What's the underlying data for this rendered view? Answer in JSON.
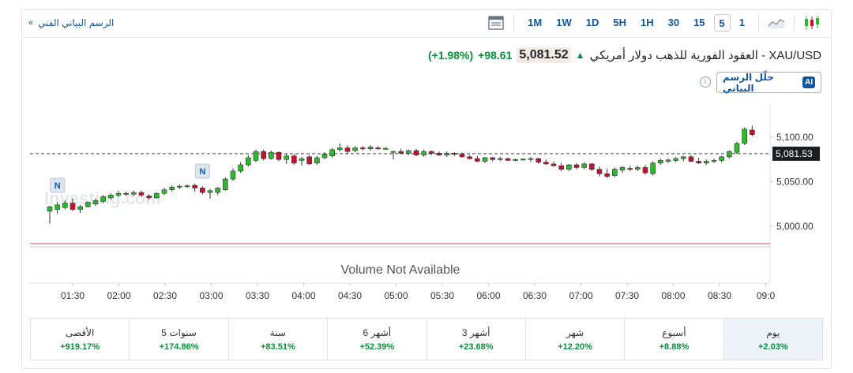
{
  "header": {
    "tech_link": "الرسم البياني الفني",
    "periods": [
      "1M",
      "1W",
      "1D",
      "5H",
      "1H",
      "30",
      "15",
      "5",
      "1"
    ],
    "active_period": "5"
  },
  "instrument": {
    "name": "XAU/USD - العقود الفورية للذهب دولار أمريكي",
    "price": "5,081.52",
    "change": "+98.61",
    "change_pct": "(+1.98%)"
  },
  "ai_button": {
    "badge": "AI",
    "label": "حلّل الرسم البياني"
  },
  "colors": {
    "up": "#2eb82e",
    "down": "#c8102e",
    "accent": "#1256a0",
    "positive_text": "#0a8f3a"
  },
  "chart_data": {
    "type": "candlestick",
    "x_ticks": [
      "01:30",
      "02:00",
      "02:30",
      "03:00",
      "03:30",
      "04:00",
      "04:30",
      "05:00",
      "05:30",
      "06:00",
      "06:30",
      "07:00",
      "07:30",
      "08:00",
      "08:30",
      "09:0"
    ],
    "y_ticks": [
      5000,
      5050,
      5100
    ],
    "y_tick_labels": [
      "5,000.00",
      "5,050.00",
      "5,100.00"
    ],
    "ylim": [
      4965,
      5125
    ],
    "last_price_label": "5,081.53",
    "last_price": 5081.5,
    "volume_text": "Volume Not Available",
    "watermark": "Investing.com",
    "news_marker_label": "N",
    "news_markers_x": [
      "01:20",
      "02:55"
    ],
    "candles": [
      {
        "t": "01:15",
        "o": 5017,
        "h": 5023,
        "l": 5003,
        "c": 5022
      },
      {
        "t": "01:20",
        "o": 5019,
        "h": 5027,
        "l": 5014,
        "c": 5024
      },
      {
        "t": "01:25",
        "o": 5021,
        "h": 5029,
        "l": 5019,
        "c": 5026
      },
      {
        "t": "01:30",
        "o": 5026,
        "h": 5031,
        "l": 5017,
        "c": 5019
      },
      {
        "t": "01:35",
        "o": 5019,
        "h": 5024,
        "l": 5015,
        "c": 5022
      },
      {
        "t": "01:40",
        "o": 5022,
        "h": 5028,
        "l": 5021,
        "c": 5027
      },
      {
        "t": "01:45",
        "o": 5025,
        "h": 5031,
        "l": 5023,
        "c": 5029
      },
      {
        "t": "01:50",
        "o": 5028,
        "h": 5035,
        "l": 5026,
        "c": 5033
      },
      {
        "t": "01:55",
        "o": 5032,
        "h": 5037,
        "l": 5030,
        "c": 5035
      },
      {
        "t": "02:00",
        "o": 5035,
        "h": 5040,
        "l": 5033,
        "c": 5037
      },
      {
        "t": "02:05",
        "o": 5037,
        "h": 5039,
        "l": 5034,
        "c": 5036
      },
      {
        "t": "02:10",
        "o": 5036,
        "h": 5040,
        "l": 5034,
        "c": 5038
      },
      {
        "t": "02:15",
        "o": 5038,
        "h": 5040,
        "l": 5033,
        "c": 5035
      },
      {
        "t": "02:20",
        "o": 5034,
        "h": 5036,
        "l": 5030,
        "c": 5032
      },
      {
        "t": "02:25",
        "o": 5032,
        "h": 5038,
        "l": 5031,
        "c": 5037
      },
      {
        "t": "02:30",
        "o": 5037,
        "h": 5043,
        "l": 5035,
        "c": 5041
      },
      {
        "t": "02:35",
        "o": 5041,
        "h": 5046,
        "l": 5039,
        "c": 5044
      },
      {
        "t": "02:40",
        "o": 5044,
        "h": 5047,
        "l": 5042,
        "c": 5045
      },
      {
        "t": "02:45",
        "o": 5045,
        "h": 5047,
        "l": 5043,
        "c": 5045.5
      },
      {
        "t": "02:50",
        "o": 5046,
        "h": 5048,
        "l": 5039,
        "c": 5043
      },
      {
        "t": "02:55",
        "o": 5043,
        "h": 5045,
        "l": 5036,
        "c": 5038
      },
      {
        "t": "03:00",
        "o": 5038,
        "h": 5042,
        "l": 5031,
        "c": 5040
      },
      {
        "t": "03:05",
        "o": 5038,
        "h": 5044,
        "l": 5035,
        "c": 5043
      },
      {
        "t": "03:10",
        "o": 5041,
        "h": 5055,
        "l": 5040,
        "c": 5053
      },
      {
        "t": "03:15",
        "o": 5053,
        "h": 5065,
        "l": 5051,
        "c": 5062
      },
      {
        "t": "03:20",
        "o": 5062,
        "h": 5072,
        "l": 5060,
        "c": 5069
      },
      {
        "t": "03:25",
        "o": 5069,
        "h": 5080,
        "l": 5067,
        "c": 5077
      },
      {
        "t": "03:30",
        "o": 5074,
        "h": 5086,
        "l": 5072,
        "c": 5084
      },
      {
        "t": "03:35",
        "o": 5084,
        "h": 5086,
        "l": 5074,
        "c": 5076
      },
      {
        "t": "03:40",
        "o": 5076,
        "h": 5085,
        "l": 5075,
        "c": 5083
      },
      {
        "t": "03:45",
        "o": 5083,
        "h": 5084,
        "l": 5073,
        "c": 5075
      },
      {
        "t": "03:50",
        "o": 5075,
        "h": 5081,
        "l": 5070,
        "c": 5079
      },
      {
        "t": "03:55",
        "o": 5079,
        "h": 5081,
        "l": 5069,
        "c": 5071
      },
      {
        "t": "04:00",
        "o": 5074,
        "h": 5078,
        "l": 5068,
        "c": 5076
      },
      {
        "t": "04:05",
        "o": 5078,
        "h": 5080,
        "l": 5069,
        "c": 5070
      },
      {
        "t": "04:10",
        "o": 5071,
        "h": 5079,
        "l": 5069,
        "c": 5077
      },
      {
        "t": "04:15",
        "o": 5077,
        "h": 5083,
        "l": 5075,
        "c": 5081
      },
      {
        "t": "04:20",
        "o": 5079,
        "h": 5088,
        "l": 5077,
        "c": 5086
      },
      {
        "t": "04:25",
        "o": 5086,
        "h": 5093,
        "l": 5084,
        "c": 5088
      },
      {
        "t": "04:30",
        "o": 5088,
        "h": 5091,
        "l": 5081,
        "c": 5084
      },
      {
        "t": "04:35",
        "o": 5085,
        "h": 5090,
        "l": 5083,
        "c": 5088
      },
      {
        "t": "04:40",
        "o": 5088,
        "h": 5090,
        "l": 5085,
        "c": 5087
      },
      {
        "t": "04:45",
        "o": 5087,
        "h": 5091,
        "l": 5085,
        "c": 5089
      },
      {
        "t": "04:50",
        "o": 5088,
        "h": 5090,
        "l": 5086,
        "c": 5087
      },
      {
        "t": "04:55",
        "o": 5087,
        "h": 5089,
        "l": 5086,
        "c": 5087.5
      },
      {
        "t": "05:00",
        "o": 5083,
        "h": 5085,
        "l": 5075,
        "c": 5084
      },
      {
        "t": "05:05",
        "o": 5084,
        "h": 5087,
        "l": 5081,
        "c": 5082
      },
      {
        "t": "05:10",
        "o": 5082,
        "h": 5086,
        "l": 5080,
        "c": 5085
      },
      {
        "t": "05:15",
        "o": 5085,
        "h": 5087,
        "l": 5079,
        "c": 5080
      },
      {
        "t": "05:20",
        "o": 5080,
        "h": 5086,
        "l": 5078,
        "c": 5084
      },
      {
        "t": "05:25",
        "o": 5084,
        "h": 5085,
        "l": 5080,
        "c": 5082
      },
      {
        "t": "05:30",
        "o": 5082,
        "h": 5084,
        "l": 5079,
        "c": 5080
      },
      {
        "t": "05:35",
        "o": 5080,
        "h": 5084,
        "l": 5078,
        "c": 5082
      },
      {
        "t": "05:40",
        "o": 5082,
        "h": 5083,
        "l": 5079,
        "c": 5081
      },
      {
        "t": "05:45",
        "o": 5081,
        "h": 5083,
        "l": 5077,
        "c": 5078
      },
      {
        "t": "05:50",
        "o": 5078,
        "h": 5080,
        "l": 5075,
        "c": 5076
      },
      {
        "t": "05:55",
        "o": 5076,
        "h": 5079,
        "l": 5072,
        "c": 5073
      },
      {
        "t": "06:00",
        "o": 5073,
        "h": 5078,
        "l": 5071,
        "c": 5077
      },
      {
        "t": "06:05",
        "o": 5077,
        "h": 5078,
        "l": 5073,
        "c": 5075
      },
      {
        "t": "06:10",
        "o": 5075,
        "h": 5078,
        "l": 5073,
        "c": 5076
      },
      {
        "t": "06:15",
        "o": 5076,
        "h": 5077,
        "l": 5073,
        "c": 5074
      },
      {
        "t": "06:20",
        "o": 5074,
        "h": 5076,
        "l": 5073,
        "c": 5075
      },
      {
        "t": "06:25",
        "o": 5075,
        "h": 5076,
        "l": 5074,
        "c": 5075.5
      },
      {
        "t": "06:30",
        "o": 5075,
        "h": 5078,
        "l": 5072,
        "c": 5076
      },
      {
        "t": "06:35",
        "o": 5076,
        "h": 5077,
        "l": 5070,
        "c": 5072
      },
      {
        "t": "06:40",
        "o": 5072,
        "h": 5075,
        "l": 5069,
        "c": 5070
      },
      {
        "t": "06:45",
        "o": 5070,
        "h": 5073,
        "l": 5067,
        "c": 5068
      },
      {
        "t": "06:50",
        "o": 5068,
        "h": 5071,
        "l": 5062,
        "c": 5064
      },
      {
        "t": "06:55",
        "o": 5064,
        "h": 5070,
        "l": 5062,
        "c": 5069
      },
      {
        "t": "07:00",
        "o": 5069,
        "h": 5071,
        "l": 5064,
        "c": 5066
      },
      {
        "t": "07:05",
        "o": 5066,
        "h": 5072,
        "l": 5064,
        "c": 5070
      },
      {
        "t": "07:10",
        "o": 5070,
        "h": 5071,
        "l": 5062,
        "c": 5064
      },
      {
        "t": "07:15",
        "o": 5064,
        "h": 5067,
        "l": 5056,
        "c": 5059
      },
      {
        "t": "07:20",
        "o": 5059,
        "h": 5065,
        "l": 5054,
        "c": 5056
      },
      {
        "t": "07:25",
        "o": 5057,
        "h": 5066,
        "l": 5055,
        "c": 5064
      },
      {
        "t": "07:30",
        "o": 5063,
        "h": 5068,
        "l": 5060,
        "c": 5066
      },
      {
        "t": "07:35",
        "o": 5065,
        "h": 5068,
        "l": 5062,
        "c": 5064
      },
      {
        "t": "07:40",
        "o": 5064,
        "h": 5068,
        "l": 5062,
        "c": 5066
      },
      {
        "t": "07:45",
        "o": 5066,
        "h": 5069,
        "l": 5058,
        "c": 5060
      },
      {
        "t": "07:50",
        "o": 5059,
        "h": 5073,
        "l": 5057,
        "c": 5071
      },
      {
        "t": "07:55",
        "o": 5071,
        "h": 5076,
        "l": 5069,
        "c": 5074
      },
      {
        "t": "08:00",
        "o": 5073,
        "h": 5076,
        "l": 5071,
        "c": 5074.5
      },
      {
        "t": "08:05",
        "o": 5074,
        "h": 5078,
        "l": 5072,
        "c": 5076
      },
      {
        "t": "08:10",
        "o": 5076,
        "h": 5079,
        "l": 5073,
        "c": 5078
      },
      {
        "t": "08:15",
        "o": 5078,
        "h": 5080,
        "l": 5072,
        "c": 5073
      },
      {
        "t": "08:20",
        "o": 5073,
        "h": 5077,
        "l": 5070,
        "c": 5071
      },
      {
        "t": "08:25",
        "o": 5071,
        "h": 5075,
        "l": 5069,
        "c": 5073
      },
      {
        "t": "08:30",
        "o": 5073,
        "h": 5076,
        "l": 5071,
        "c": 5074
      },
      {
        "t": "08:35",
        "o": 5074,
        "h": 5079,
        "l": 5072,
        "c": 5078
      },
      {
        "t": "08:40",
        "o": 5078,
        "h": 5085,
        "l": 5076,
        "c": 5084
      },
      {
        "t": "08:45",
        "o": 5083,
        "h": 5095,
        "l": 5081,
        "c": 5093
      },
      {
        "t": "08:50",
        "o": 5093,
        "h": 5111,
        "l": 5091,
        "c": 5109
      },
      {
        "t": "08:55",
        "o": 5108,
        "h": 5113,
        "l": 5101,
        "c": 5103
      }
    ]
  },
  "performance": [
    {
      "label": "الأقصى",
      "value": "+919.17%"
    },
    {
      "label": "5 سنوات",
      "value": "+174.86%"
    },
    {
      "label": "سنة",
      "value": "+83.51%"
    },
    {
      "label": "6 أشهر",
      "value": "+52.39%"
    },
    {
      "label": "3 أشهر",
      "value": "+23.68%"
    },
    {
      "label": "شهر",
      "value": "+12.20%"
    },
    {
      "label": "أسبوع",
      "value": "+8.88%"
    },
    {
      "label": "يوم",
      "value": "+2.03%"
    }
  ]
}
